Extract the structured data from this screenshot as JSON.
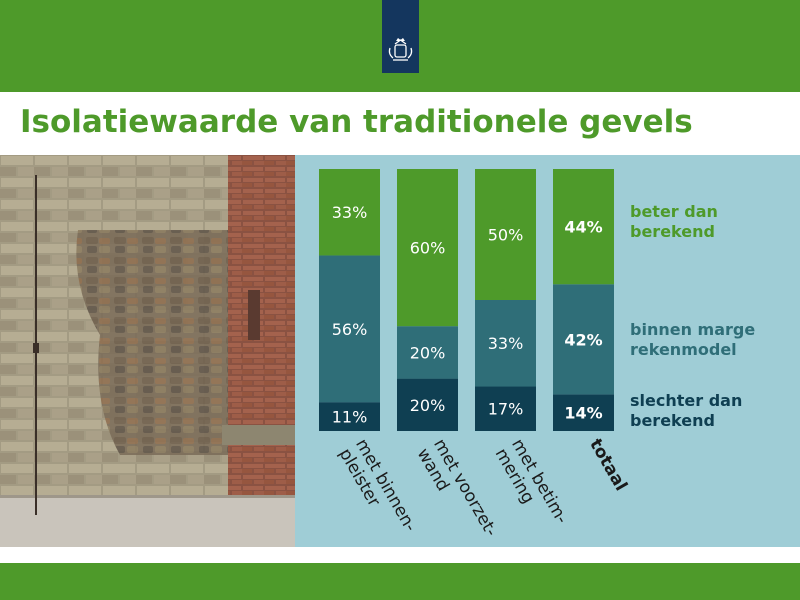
{
  "title": "Isolatiewaarde van traditionele gevels",
  "colors": {
    "green_band": "#4e9a2a",
    "navy_logo": "#14365e",
    "panel": "#9fcdd6",
    "seg_better": "#4e9a2a",
    "seg_within": "#2f6e78",
    "seg_worse": "#0f3f52"
  },
  "chart_data": {
    "type": "bar",
    "stacked": true,
    "unit": "%",
    "categories": [
      "met binnen-\npleister",
      "met voorzet-\nwand",
      "met betim-\nmering",
      "totaal"
    ],
    "series": [
      {
        "name": "slechter dan berekend",
        "values": [
          11,
          20,
          17,
          14
        ],
        "color": "#0f3f52"
      },
      {
        "name": "binnen marge rekenmodel",
        "values": [
          56,
          20,
          33,
          42
        ],
        "color": "#2f6e78"
      },
      {
        "name": "beter dan berekend",
        "values": [
          33,
          60,
          50,
          44
        ],
        "color": "#4e9a2a"
      }
    ],
    "data_labels": [
      [
        "11%",
        "20%",
        "17%",
        "14%"
      ],
      [
        "56%",
        "20%",
        "33%",
        "42%"
      ],
      [
        "33%",
        "60%",
        "50%",
        "44%"
      ]
    ],
    "legend": [
      {
        "label": "beter dan\nberekend",
        "color": "#4e9a2a"
      },
      {
        "label": "binnen marge\nrekenmodel",
        "color": "#2f6e78"
      },
      {
        "label": "slechter dan\nberekend",
        "color": "#0f3f52"
      }
    ],
    "legend_placement": "right",
    "ylim": [
      0,
      100
    ]
  }
}
